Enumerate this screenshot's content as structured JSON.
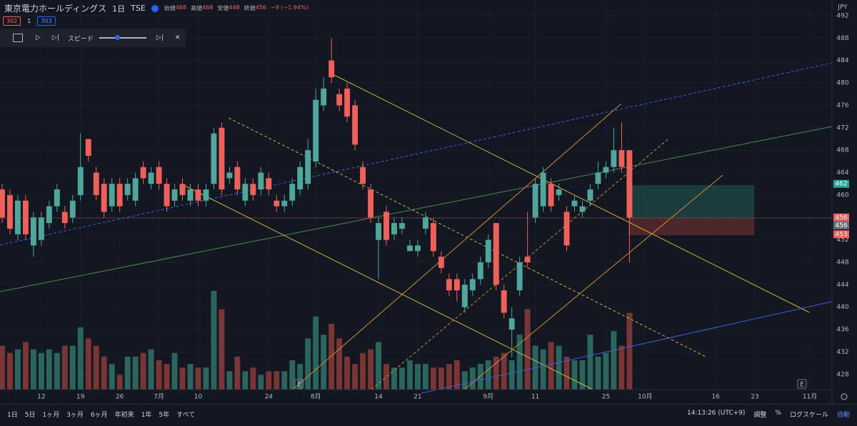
{
  "header": {
    "title": "東京電力ホールディングス",
    "interval": "1日",
    "exchange": "TSE",
    "ohlc": [
      {
        "label": "始値",
        "value": "468"
      },
      {
        "label": "高値",
        "value": "468"
      },
      {
        "label": "安値",
        "value": "448"
      },
      {
        "label": "終値",
        "value": "456"
      }
    ],
    "change": "−9 (−1.94%)"
  },
  "counters": [
    "302",
    "1",
    "303"
  ],
  "replay": {
    "speed": "スピード"
  },
  "chart_data": {
    "type": "candlestick",
    "currency": "JPY",
    "xlim": [
      -0.27,
      105.83
    ],
    "ylim": [
      425.3,
      494.8
    ],
    "yticks": [
      428,
      432,
      436,
      440,
      444,
      448,
      452,
      456,
      460,
      464,
      468,
      472,
      476,
      480,
      484,
      488,
      492
    ],
    "xticks": [
      {
        "value": 5,
        "label": "12"
      },
      {
        "value": 10,
        "label": "19"
      },
      {
        "value": 15,
        "label": "26"
      },
      {
        "value": 20,
        "label": "7月"
      },
      {
        "value": 25,
        "label": "10"
      },
      {
        "value": 34,
        "label": "24"
      },
      {
        "value": 40,
        "label": "8月"
      },
      {
        "value": 48,
        "label": "14"
      },
      {
        "value": 53,
        "label": "21"
      },
      {
        "value": 62,
        "label": "9月"
      },
      {
        "value": 68,
        "label": "11"
      },
      {
        "value": 77,
        "label": "25"
      },
      {
        "value": 82,
        "label": "10月"
      },
      {
        "value": 91,
        "label": "16"
      },
      {
        "value": 96,
        "label": "23"
      },
      {
        "value": 103,
        "label": "11月"
      }
    ],
    "up_color": "#4fa79b",
    "down_color": "#f0605a",
    "volume_up_color": "#2b665e",
    "volume_down_color": "#7a3634",
    "open": [
      461,
      460,
      453,
      459,
      451,
      452,
      455,
      458,
      457,
      456,
      460,
      470,
      464,
      462,
      458,
      462,
      460,
      459,
      465,
      462,
      465,
      462,
      459,
      462,
      459,
      461,
      459,
      462,
      472,
      463,
      465,
      459,
      462,
      461,
      463,
      459,
      458,
      459,
      461,
      462,
      466,
      476,
      484,
      478,
      479,
      476,
      465,
      461,
      452,
      457,
      453,
      454,
      450,
      450,
      454,
      455,
      449,
      445,
      445,
      440,
      443,
      445,
      448,
      455,
      443,
      436,
      443,
      449,
      456,
      458,
      462,
      460,
      457,
      458,
      457,
      459,
      462,
      464,
      465,
      468,
      468
    ],
    "high": [
      462,
      461,
      460,
      460,
      457,
      457,
      459,
      462,
      458,
      460,
      471,
      470,
      465,
      463,
      463,
      463,
      463,
      464,
      466,
      465,
      466,
      463,
      462,
      463,
      462,
      462,
      462,
      472,
      473,
      465,
      466,
      463,
      463,
      465,
      464,
      460,
      460,
      463,
      466,
      470,
      479,
      481,
      488,
      479,
      480,
      477,
      466,
      462,
      456,
      458,
      456,
      456,
      452,
      452,
      457,
      456,
      450,
      446,
      446,
      445,
      446,
      449,
      453,
      455,
      444,
      440,
      449,
      457,
      463,
      465,
      463,
      462,
      458,
      460,
      459,
      462,
      466,
      466,
      472,
      473,
      468
    ],
    "low": [
      455,
      453,
      452,
      452,
      449,
      451,
      454,
      457,
      454,
      455,
      459,
      466,
      459,
      456,
      457,
      457,
      459,
      458,
      462,
      461,
      461,
      457,
      458,
      459,
      458,
      458,
      458,
      461,
      460,
      462,
      460,
      458,
      459,
      460,
      460,
      457,
      457,
      458,
      460,
      461,
      465,
      475,
      480,
      475,
      473,
      468,
      461,
      455,
      445,
      451,
      452,
      453,
      450,
      449,
      453,
      449,
      446,
      442,
      441,
      439,
      442,
      444,
      447,
      443,
      438,
      431,
      442,
      447,
      455,
      457,
      457,
      459,
      450,
      457,
      456,
      458,
      461,
      463,
      464,
      464,
      448
    ],
    "close": [
      456,
      454,
      459,
      453,
      456,
      456,
      458,
      461,
      455,
      459,
      465,
      467,
      460,
      457,
      462,
      458,
      462,
      463,
      463,
      464,
      462,
      458,
      461,
      460,
      461,
      459,
      461,
      471,
      461,
      464,
      461,
      462,
      460,
      464,
      461,
      458,
      459,
      462,
      465,
      468,
      477,
      479,
      481,
      476,
      474,
      469,
      462,
      456,
      455,
      452,
      455,
      455,
      451,
      451,
      456,
      450,
      447,
      443,
      443,
      444,
      445,
      448,
      452,
      444,
      439,
      438,
      448,
      448,
      462,
      464,
      458,
      461,
      451,
      459,
      458,
      461,
      464,
      465,
      468,
      465,
      456
    ],
    "volume": [
      60,
      50,
      55,
      65,
      55,
      50,
      55,
      50,
      60,
      60,
      85,
      70,
      60,
      45,
      35,
      20,
      45,
      45,
      50,
      55,
      40,
      35,
      50,
      30,
      35,
      30,
      30,
      135,
      110,
      25,
      45,
      25,
      30,
      20,
      25,
      25,
      25,
      40,
      35,
      70,
      100,
      75,
      90,
      70,
      45,
      35,
      50,
      55,
      65,
      35,
      30,
      30,
      40,
      35,
      35,
      30,
      30,
      35,
      40,
      25,
      30,
      35,
      40,
      45,
      50,
      40,
      75,
      110,
      60,
      55,
      65,
      60,
      45,
      40,
      40,
      75,
      45,
      50,
      80,
      60,
      105
    ],
    "price_labels": [
      {
        "value": 462,
        "label": "462",
        "color": "#26a69a"
      },
      {
        "value": 456,
        "label": "456",
        "color": "#f0605a"
      },
      {
        "value": 456,
        "label": "456",
        "color": "#6a6d78"
      },
      {
        "value": 453,
        "label": "453",
        "color": "#f0605a"
      }
    ]
  },
  "toolbar": {
    "ranges": [
      "1日",
      "5日",
      "1ヶ月",
      "3ヶ月",
      "6ヶ月",
      "年初来",
      "1年",
      "5年",
      "すべて"
    ],
    "time": "14:13:26 (UTC+9)",
    "options": [
      "調整",
      "%",
      "ログスケール",
      "自動"
    ]
  },
  "markers": [
    "E",
    "E"
  ]
}
